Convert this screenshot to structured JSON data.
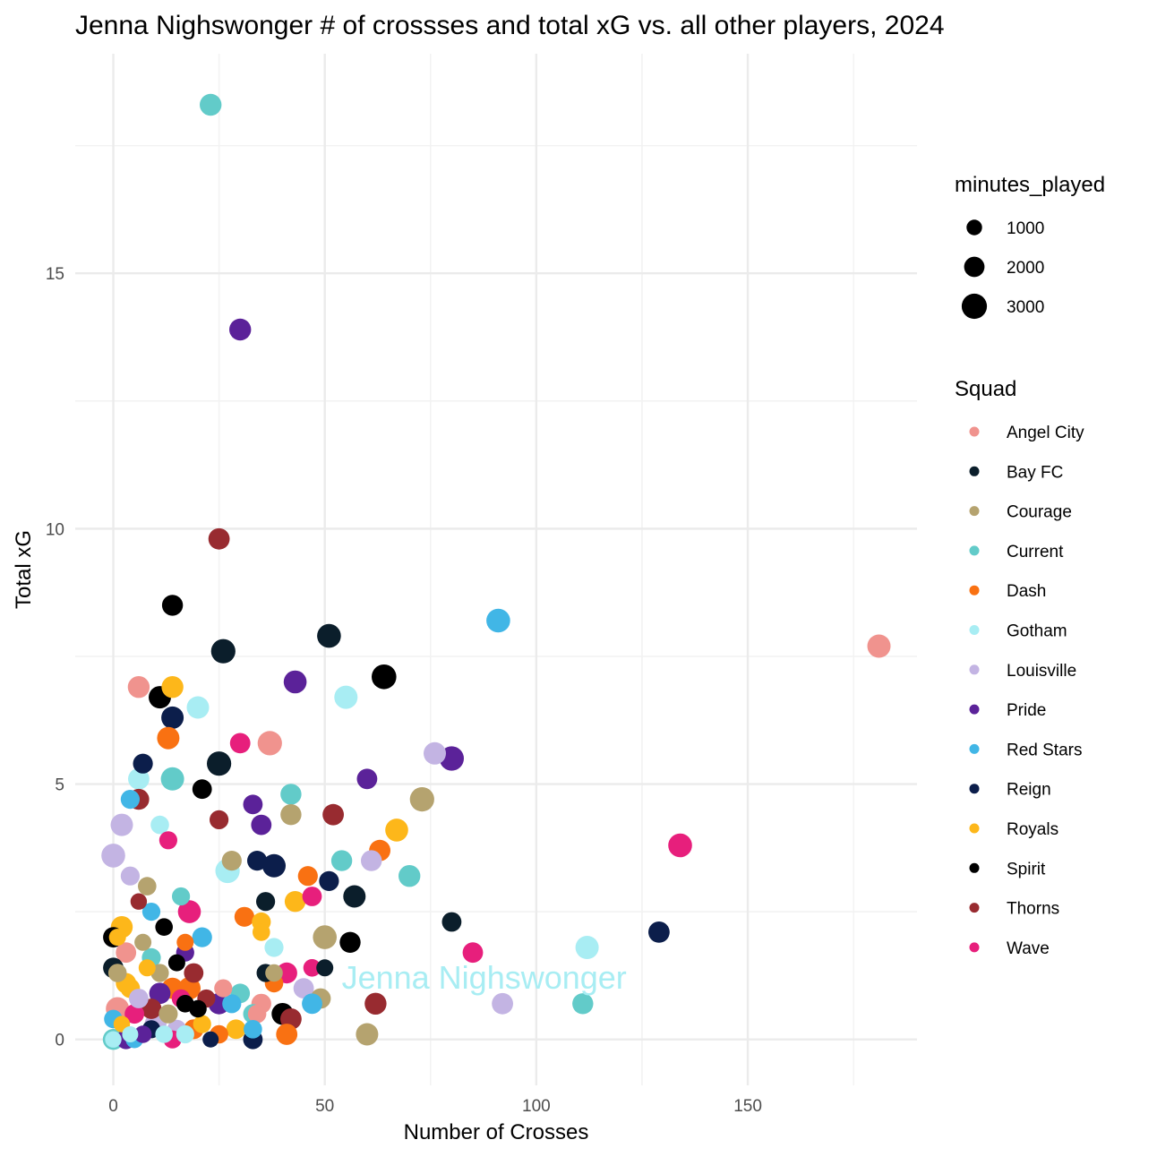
{
  "chart_data": {
    "type": "scatter",
    "title": "Jenna Nighswonger # of crossses and total xG vs. all other players, 2024",
    "xlabel": "Number of Crosses",
    "ylabel": "Total xG",
    "xlim": [
      -9,
      190
    ],
    "ylim": [
      -0.9,
      19.3
    ],
    "x_ticks": [
      0,
      50,
      100,
      150
    ],
    "y_ticks": [
      0,
      5,
      10,
      15
    ],
    "grid": true,
    "size_legend": {
      "title": "minutes_played",
      "entries": [
        {
          "label": "1000",
          "value": 1000
        },
        {
          "label": "2000",
          "value": 2000
        },
        {
          "label": "3000",
          "value": 3000
        }
      ]
    },
    "color_legend": {
      "title": "Squad",
      "placement": "right",
      "entries": [
        {
          "label": "Angel City",
          "color": "#F0938E"
        },
        {
          "label": "Bay FC",
          "color": "#0B1E2B"
        },
        {
          "label": "Courage",
          "color": "#B5A36F"
        },
        {
          "label": "Current",
          "color": "#62CBC9"
        },
        {
          "label": "Dash",
          "color": "#F97112"
        },
        {
          "label": "Gotham",
          "color": "#A8EDF3"
        },
        {
          "label": "Louisville",
          "color": "#C3B4E3"
        },
        {
          "label": "Pride",
          "color": "#5B2299"
        },
        {
          "label": "Red Stars",
          "color": "#41B6E6"
        },
        {
          "label": "Reign",
          "color": "#0C1E4B"
        },
        {
          "label": "Royals",
          "color": "#FDB71A"
        },
        {
          "label": "Spirit",
          "color": "#000000"
        },
        {
          "label": "Thorns",
          "color": "#982B30"
        },
        {
          "label": "Wave",
          "color": "#E71F7C"
        }
      ]
    },
    "annotation": {
      "text": "Jenna Nighswonger",
      "x": 54,
      "y": 1.2,
      "color": "#A8EDF3"
    },
    "points": [
      {
        "x": 23,
        "y": 18.3,
        "squad": "Current",
        "minutes": 2300
      },
      {
        "x": 30,
        "y": 13.9,
        "squad": "Pride",
        "minutes": 2300
      },
      {
        "x": 25,
        "y": 9.8,
        "squad": "Thorns",
        "minutes": 2200
      },
      {
        "x": 14,
        "y": 8.5,
        "squad": "Spirit",
        "minutes": 2100
      },
      {
        "x": 91,
        "y": 8.2,
        "squad": "Red Stars",
        "minutes": 2700
      },
      {
        "x": 181,
        "y": 7.7,
        "squad": "Angel City",
        "minutes": 2600
      },
      {
        "x": 51,
        "y": 7.9,
        "squad": "Bay FC",
        "minutes": 2700
      },
      {
        "x": 26,
        "y": 7.6,
        "squad": "Bay FC",
        "minutes": 2800
      },
      {
        "x": 64,
        "y": 7.1,
        "squad": "Spirit",
        "minutes": 2900
      },
      {
        "x": 43,
        "y": 7.0,
        "squad": "Pride",
        "minutes": 2500
      },
      {
        "x": 6,
        "y": 6.9,
        "squad": "Angel City",
        "minutes": 2300
      },
      {
        "x": 14,
        "y": 6.9,
        "squad": "Royals",
        "minutes": 2300
      },
      {
        "x": 11,
        "y": 6.7,
        "squad": "Spirit",
        "minutes": 2400
      },
      {
        "x": 55,
        "y": 6.7,
        "squad": "Gotham",
        "minutes": 2600
      },
      {
        "x": 20,
        "y": 6.5,
        "squad": "Gotham",
        "minutes": 2400
      },
      {
        "x": 14,
        "y": 6.3,
        "squad": "Reign",
        "minutes": 2400
      },
      {
        "x": 13,
        "y": 5.9,
        "squad": "Dash",
        "minutes": 2400
      },
      {
        "x": 30,
        "y": 5.8,
        "squad": "Wave",
        "minutes": 2000
      },
      {
        "x": 37,
        "y": 5.8,
        "squad": "Angel City",
        "minutes": 2800
      },
      {
        "x": 76,
        "y": 5.6,
        "squad": "Louisville",
        "minutes": 2400
      },
      {
        "x": 80,
        "y": 5.5,
        "squad": "Pride",
        "minutes": 2800
      },
      {
        "x": 25,
        "y": 5.4,
        "squad": "Bay FC",
        "minutes": 2800
      },
      {
        "x": 7,
        "y": 5.4,
        "squad": "Reign",
        "minutes": 1900
      },
      {
        "x": 6,
        "y": 5.1,
        "squad": "Gotham",
        "minutes": 2200
      },
      {
        "x": 14,
        "y": 5.1,
        "squad": "Current",
        "minutes": 2600
      },
      {
        "x": 60,
        "y": 5.1,
        "squad": "Pride",
        "minutes": 2000
      },
      {
        "x": 21,
        "y": 4.9,
        "squad": "Spirit",
        "minutes": 1800
      },
      {
        "x": 42,
        "y": 4.8,
        "squad": "Current",
        "minutes": 2100
      },
      {
        "x": 6,
        "y": 4.7,
        "squad": "Thorns",
        "minutes": 2100
      },
      {
        "x": 73,
        "y": 4.7,
        "squad": "Courage",
        "minutes": 2800
      },
      {
        "x": 4,
        "y": 4.7,
        "squad": "Red Stars",
        "minutes": 1700
      },
      {
        "x": 33,
        "y": 4.6,
        "squad": "Pride",
        "minutes": 1800
      },
      {
        "x": 42,
        "y": 4.4,
        "squad": "Courage",
        "minutes": 2100
      },
      {
        "x": 52,
        "y": 4.4,
        "squad": "Thorns",
        "minutes": 2200
      },
      {
        "x": 25,
        "y": 4.3,
        "squad": "Thorns",
        "minutes": 1700
      },
      {
        "x": 2,
        "y": 4.2,
        "squad": "Louisville",
        "minutes": 2400
      },
      {
        "x": 11,
        "y": 4.2,
        "squad": "Gotham",
        "minutes": 1600
      },
      {
        "x": 35,
        "y": 4.2,
        "squad": "Pride",
        "minutes": 2000
      },
      {
        "x": 67,
        "y": 4.1,
        "squad": "Royals",
        "minutes": 2500
      },
      {
        "x": 13,
        "y": 3.9,
        "squad": "Wave",
        "minutes": 1500
      },
      {
        "x": 134,
        "y": 3.8,
        "squad": "Wave",
        "minutes": 2700
      },
      {
        "x": 63,
        "y": 3.7,
        "squad": "Dash",
        "minutes": 2200
      },
      {
        "x": 0,
        "y": 3.6,
        "squad": "Louisville",
        "minutes": 2700
      },
      {
        "x": 28,
        "y": 3.5,
        "squad": "Courage",
        "minutes": 1900
      },
      {
        "x": 34,
        "y": 3.5,
        "squad": "Reign",
        "minutes": 1900
      },
      {
        "x": 54,
        "y": 3.5,
        "squad": "Current",
        "minutes": 2100
      },
      {
        "x": 61,
        "y": 3.5,
        "squad": "Louisville",
        "minutes": 2100
      },
      {
        "x": 38,
        "y": 3.4,
        "squad": "Reign",
        "minutes": 2600
      },
      {
        "x": 27,
        "y": 3.3,
        "squad": "Gotham",
        "minutes": 2800
      },
      {
        "x": 4,
        "y": 3.2,
        "squad": "Louisville",
        "minutes": 1700
      },
      {
        "x": 46,
        "y": 3.2,
        "squad": "Dash",
        "minutes": 1900
      },
      {
        "x": 70,
        "y": 3.2,
        "squad": "Current",
        "minutes": 2300
      },
      {
        "x": 51,
        "y": 3.1,
        "squad": "Reign",
        "minutes": 1900
      },
      {
        "x": 8,
        "y": 3.0,
        "squad": "Courage",
        "minutes": 1600
      },
      {
        "x": 57,
        "y": 2.8,
        "squad": "Bay FC",
        "minutes": 2400
      },
      {
        "x": 16,
        "y": 2.8,
        "squad": "Current",
        "minutes": 1500
      },
      {
        "x": 47,
        "y": 2.8,
        "squad": "Wave",
        "minutes": 1800
      },
      {
        "x": 6,
        "y": 2.7,
        "squad": "Thorns",
        "minutes": 1200
      },
      {
        "x": 36,
        "y": 2.7,
        "squad": "Bay FC",
        "minutes": 1700
      },
      {
        "x": 43,
        "y": 2.7,
        "squad": "Royals",
        "minutes": 2100
      },
      {
        "x": 9,
        "y": 2.5,
        "squad": "Red Stars",
        "minutes": 1500
      },
      {
        "x": 18,
        "y": 2.5,
        "squad": "Wave",
        "minutes": 2500
      },
      {
        "x": 31,
        "y": 2.4,
        "squad": "Dash",
        "minutes": 1900
      },
      {
        "x": 35,
        "y": 2.3,
        "squad": "Royals",
        "minutes": 1700
      },
      {
        "x": 80,
        "y": 2.3,
        "squad": "Bay FC",
        "minutes": 1800
      },
      {
        "x": 12,
        "y": 2.2,
        "squad": "Spirit",
        "minutes": 1400
      },
      {
        "x": 2,
        "y": 2.2,
        "squad": "Royals",
        "minutes": 2300
      },
      {
        "x": 35,
        "y": 2.1,
        "squad": "Royals",
        "minutes": 1400
      },
      {
        "x": 129,
        "y": 2.1,
        "squad": "Reign",
        "minutes": 2200
      },
      {
        "x": 0,
        "y": 2.0,
        "squad": "Spirit",
        "minutes": 2000
      },
      {
        "x": 1,
        "y": 2.0,
        "squad": "Royals",
        "minutes": 1300
      },
      {
        "x": 21,
        "y": 2.0,
        "squad": "Red Stars",
        "minutes": 1900
      },
      {
        "x": 50,
        "y": 2.0,
        "squad": "Courage",
        "minutes": 2700
      },
      {
        "x": 56,
        "y": 1.9,
        "squad": "Spirit",
        "minutes": 2100
      },
      {
        "x": 17,
        "y": 1.9,
        "squad": "Dash",
        "minutes": 1300
      },
      {
        "x": 7,
        "y": 1.9,
        "squad": "Courage",
        "minutes": 1300
      },
      {
        "x": 38,
        "y": 1.8,
        "squad": "Gotham",
        "minutes": 1700
      },
      {
        "x": 112,
        "y": 1.8,
        "squad": "Gotham",
        "minutes": 2600
      },
      {
        "x": 85,
        "y": 1.7,
        "squad": "Wave",
        "minutes": 2000
      },
      {
        "x": 3,
        "y": 1.7,
        "squad": "Angel City",
        "minutes": 2000
      },
      {
        "x": 15,
        "y": 1.5,
        "squad": "Spirit",
        "minutes": 1300
      },
      {
        "x": 9,
        "y": 1.6,
        "squad": "Current",
        "minutes": 1700
      },
      {
        "x": 17,
        "y": 1.7,
        "squad": "Pride",
        "minutes": 1500
      },
      {
        "x": 0,
        "y": 1.4,
        "squad": "Bay FC",
        "minutes": 2000
      },
      {
        "x": 8,
        "y": 1.4,
        "squad": "Royals",
        "minutes": 1300
      },
      {
        "x": 47,
        "y": 1.4,
        "squad": "Wave",
        "minutes": 1400
      },
      {
        "x": 50,
        "y": 1.4,
        "squad": "Bay FC",
        "minutes": 1300
      },
      {
        "x": 41,
        "y": 1.3,
        "squad": "Wave",
        "minutes": 2100
      },
      {
        "x": 36,
        "y": 1.3,
        "squad": "Bay FC",
        "minutes": 1500
      },
      {
        "x": 38,
        "y": 1.3,
        "squad": "Courage",
        "minutes": 1400
      },
      {
        "x": 1,
        "y": 1.3,
        "squad": "Courage",
        "minutes": 1600
      },
      {
        "x": 19,
        "y": 1.3,
        "squad": "Thorns",
        "minutes": 1800
      },
      {
        "x": 11,
        "y": 1.3,
        "squad": "Courage",
        "minutes": 1500
      },
      {
        "x": 3,
        "y": 1.1,
        "squad": "Royals",
        "minutes": 2000
      },
      {
        "x": 14,
        "y": 1.0,
        "squad": "Dash",
        "minutes": 2200
      },
      {
        "x": 18,
        "y": 1.0,
        "squad": "Dash",
        "minutes": 2400
      },
      {
        "x": 26,
        "y": 1.0,
        "squad": "Angel City",
        "minutes": 1500
      },
      {
        "x": 38,
        "y": 1.1,
        "squad": "Dash",
        "minutes": 1600
      },
      {
        "x": 4,
        "y": 1.0,
        "squad": "Royals",
        "minutes": 1800
      },
      {
        "x": 11,
        "y": 0.9,
        "squad": "Pride",
        "minutes": 2200
      },
      {
        "x": 30,
        "y": 0.9,
        "squad": "Current",
        "minutes": 1800
      },
      {
        "x": 45,
        "y": 1.0,
        "squad": "Louisville",
        "minutes": 2000
      },
      {
        "x": 62,
        "y": 0.7,
        "squad": "Thorns",
        "minutes": 2300
      },
      {
        "x": 92,
        "y": 0.7,
        "squad": "Louisville",
        "minutes": 2200
      },
      {
        "x": 111,
        "y": 0.7,
        "squad": "Current",
        "minutes": 2100
      },
      {
        "x": 35,
        "y": 0.7,
        "squad": "Angel City",
        "minutes": 1900
      },
      {
        "x": 17,
        "y": 0.7,
        "squad": "Spirit",
        "minutes": 1400
      },
      {
        "x": 49,
        "y": 0.8,
        "squad": "Courage",
        "minutes": 2000
      },
      {
        "x": 47,
        "y": 0.7,
        "squad": "Red Stars",
        "minutes": 2000
      },
      {
        "x": 25,
        "y": 0.7,
        "squad": "Pride",
        "minutes": 2200
      },
      {
        "x": 20,
        "y": 0.6,
        "squad": "Spirit",
        "minutes": 1400
      },
      {
        "x": 9,
        "y": 0.6,
        "squad": "Thorns",
        "minutes": 2000
      },
      {
        "x": 1,
        "y": 0.6,
        "squad": "Angel City",
        "minutes": 2600
      },
      {
        "x": 5,
        "y": 0.5,
        "squad": "Wave",
        "minutes": 1800
      },
      {
        "x": 33,
        "y": 0.5,
        "squad": "Current",
        "minutes": 1800
      },
      {
        "x": 40,
        "y": 0.5,
        "squad": "Spirit",
        "minutes": 2300
      },
      {
        "x": 42,
        "y": 0.4,
        "squad": "Thorns",
        "minutes": 2200
      },
      {
        "x": 34,
        "y": 0.5,
        "squad": "Angel City",
        "minutes": 1600
      },
      {
        "x": 0,
        "y": 0.4,
        "squad": "Red Stars",
        "minutes": 1600
      },
      {
        "x": 10,
        "y": 0.3,
        "squad": "Louisville",
        "minutes": 2300
      },
      {
        "x": 21,
        "y": 0.3,
        "squad": "Royals",
        "minutes": 1500
      },
      {
        "x": 2,
        "y": 0.3,
        "squad": "Royals",
        "minutes": 1200
      },
      {
        "x": 15,
        "y": 0.2,
        "squad": "Louisville",
        "minutes": 1700
      },
      {
        "x": 19,
        "y": 0.2,
        "squad": "Dash",
        "minutes": 1900
      },
      {
        "x": 29,
        "y": 0.2,
        "squad": "Royals",
        "minutes": 1800
      },
      {
        "x": 33,
        "y": 0.2,
        "squad": "Red Stars",
        "minutes": 1600
      },
      {
        "x": 41,
        "y": 0.1,
        "squad": "Dash",
        "minutes": 2200
      },
      {
        "x": 60,
        "y": 0.1,
        "squad": "Courage",
        "minutes": 2400
      },
      {
        "x": 0,
        "y": 0.0,
        "squad": "Current",
        "minutes": 2100
      },
      {
        "x": 0,
        "y": 0.0,
        "squad": "Gotham",
        "minutes": 1200
      },
      {
        "x": 5,
        "y": 0.0,
        "squad": "Red Stars",
        "minutes": 1400
      },
      {
        "x": 14,
        "y": 0.0,
        "squad": "Wave",
        "minutes": 1500
      },
      {
        "x": 23,
        "y": 0.0,
        "squad": "Reign",
        "minutes": 1100
      },
      {
        "x": 33,
        "y": 0.0,
        "squad": "Reign",
        "minutes": 1800
      },
      {
        "x": 17,
        "y": 0.1,
        "squad": "Gotham",
        "minutes": 1500
      },
      {
        "x": 3,
        "y": 0.0,
        "squad": "Pride",
        "minutes": 1800
      },
      {
        "x": 7,
        "y": 0.1,
        "squad": "Pride",
        "minutes": 1400
      },
      {
        "x": 12,
        "y": 0.1,
        "squad": "Gotham",
        "minutes": 1400
      },
      {
        "x": 25,
        "y": 0.1,
        "squad": "Dash",
        "minutes": 1600
      },
      {
        "x": 4,
        "y": 0.1,
        "squad": "Gotham",
        "minutes": 1100
      },
      {
        "x": 9,
        "y": 0.2,
        "squad": "Reign",
        "minutes": 1500
      },
      {
        "x": 28,
        "y": 0.7,
        "squad": "Red Stars",
        "minutes": 1700
      },
      {
        "x": 13,
        "y": 0.5,
        "squad": "Courage",
        "minutes": 1700
      },
      {
        "x": 6,
        "y": 0.8,
        "squad": "Louisville",
        "minutes": 1800
      },
      {
        "x": 16,
        "y": 0.8,
        "squad": "Wave",
        "minutes": 1600
      },
      {
        "x": 22,
        "y": 0.8,
        "squad": "Thorns",
        "minutes": 1500
      }
    ]
  }
}
